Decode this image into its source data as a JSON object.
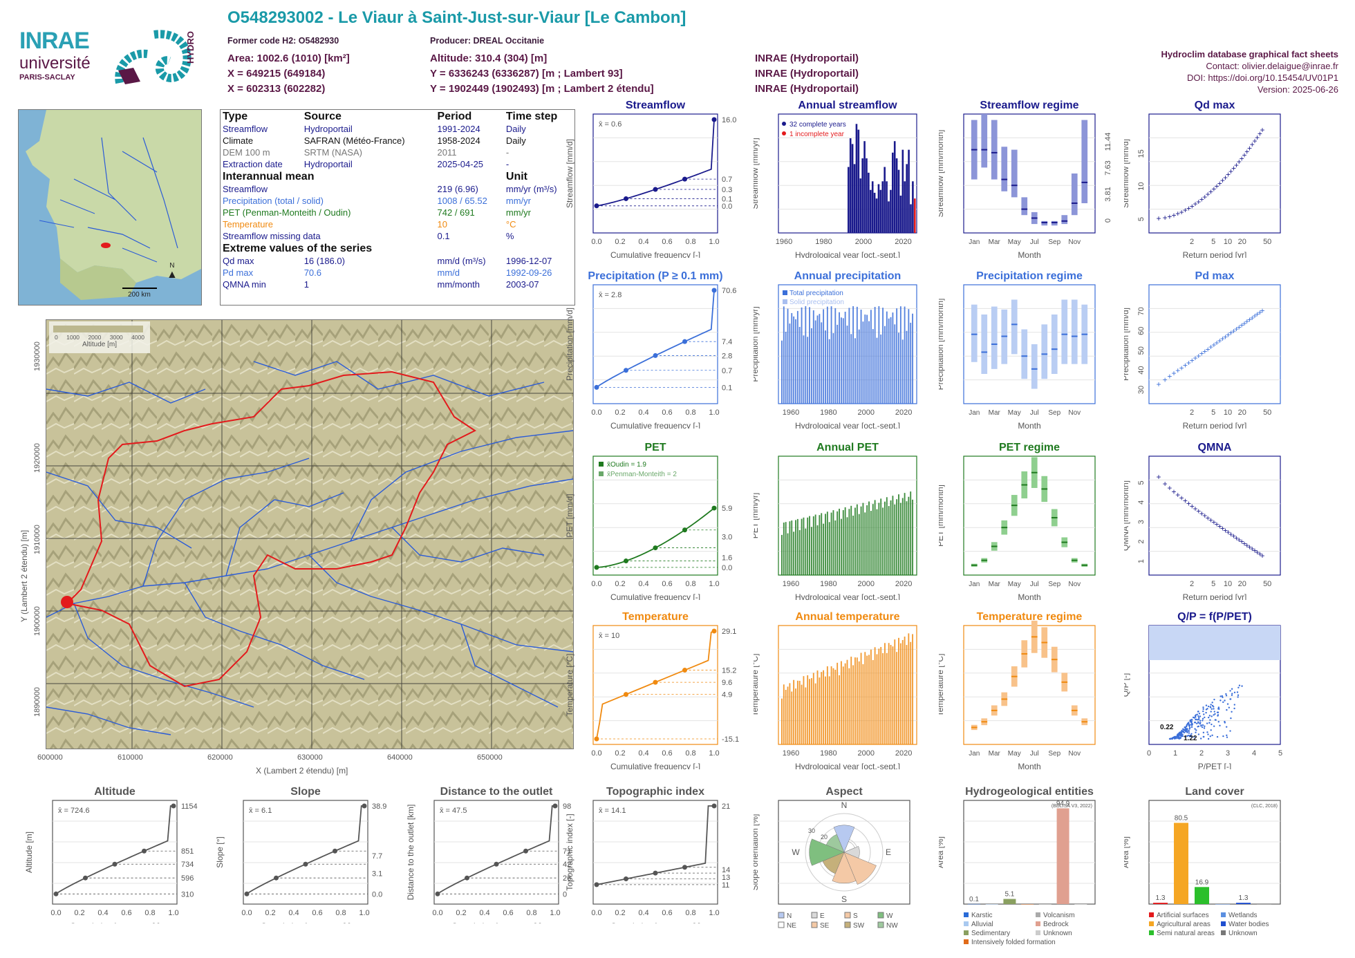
{
  "header": {
    "title": "O548293002 - Le Viaur à Saint-Just-sur-Viaur [Le Cambon]",
    "former_code": "Former code H2: O5482930",
    "producer": "Producer: DREAL Occitanie",
    "area": "Area: 1002.6 (1010) [km²]",
    "altitude": "Altitude: 310.4 (304) [m]",
    "x93": "X = 649215 (649184)",
    "y93": "Y = 6336243 (6336287) [m ; Lambert 93]",
    "x2": "X = 602313 (602282)",
    "y2": "Y = 1902449 (1902493) [m ; Lambert 2 étendu]",
    "src1": "INRAE (Hydroportail)",
    "src2": "INRAE (Hydroportail)",
    "src3": "INRAE (Hydroportail)"
  },
  "right_info": {
    "line1": "Hydroclim database graphical fact sheets",
    "line2": "Contact: olivier.delaigue@inrae.fr",
    "line3": "DOI: https://doi.org/10.15454/UV01P1",
    "line4": "Version: 2025-06-26"
  },
  "logos": {
    "inrae": "INRAE",
    "universite": "université",
    "paris": "PARIS-SACLAY",
    "hydro": "HYDRO"
  },
  "info_table": {
    "head": [
      "Type",
      "Source",
      "Period",
      "Time step"
    ],
    "rows": [
      [
        "Streamflow",
        "Hydroportail",
        "1991-2024",
        "Daily"
      ],
      [
        "Climate",
        "SAFRAN (Météo-France)",
        "1958-2024",
        "Daily"
      ],
      [
        "DEM 100 m",
        "SRTM (NASA)",
        "2011",
        "-"
      ],
      [
        "Extraction date",
        "Hydroportail",
        "2025-04-25",
        "-"
      ]
    ],
    "interannual_title": "Interannual mean",
    "unit_title": "Unit",
    "interannual": [
      [
        "Streamflow",
        "219 (6.96)",
        "mm/yr (m³/s)"
      ],
      [
        "Precipitation (total / solid)",
        "1008 / 65.52",
        "mm/yr"
      ],
      [
        "PET (Penman-Monteith / Oudin)",
        "742 / 691",
        "mm/yr"
      ],
      [
        "Temperature",
        "10",
        "°C"
      ],
      [
        "Streamflow missing data",
        "0.1",
        "%"
      ]
    ],
    "extreme_title": "Extreme values of the series",
    "extreme": [
      [
        "Qd max",
        "16 (186.0)",
        "mm/d (m³/s)",
        "1996-12-07"
      ],
      [
        "Pd max",
        "70.6",
        "mm/d",
        "1992-09-26"
      ],
      [
        "QMNA min",
        "1",
        "mm/month",
        "2003-07"
      ]
    ]
  },
  "map_small": {
    "north": "N",
    "scale": "200 km"
  },
  "map_big": {
    "xlabel": "X (Lambert 2 étendu) [m]",
    "ylabel": "Y (Lambert 2 étendu) [m]",
    "xticks": [
      "600000",
      "610000",
      "620000",
      "630000",
      "640000",
      "650000"
    ],
    "yticks": [
      "1890000",
      "1900000",
      "1910000",
      "1920000",
      "1930000"
    ],
    "legend_ticks": [
      "0",
      "1000",
      "2000",
      "3000",
      "4000"
    ],
    "legend_title": "Altitude [m]"
  },
  "colors": {
    "streamflow": "#1a1a8c",
    "precip": "#3b6fd9",
    "pet": "#1f7a1f",
    "temp": "#f08a10",
    "gray": "#555555",
    "title_teal": "#1a9aa8",
    "header_purple": "#5a1846"
  },
  "chart_data": [
    {
      "id": "streamflow_fdc",
      "type": "line",
      "title": "Streamflow",
      "xlabel": "Cumulative frequency [-]",
      "ylabel": "Streamflow [mm/d]",
      "mean_label": "x̄ = 0.6",
      "right_ticks": [
        "16.0",
        "0.7",
        "0.3",
        "0.1",
        "0.0"
      ],
      "points": [
        [
          0,
          0.0
        ],
        [
          0.25,
          0.1
        ],
        [
          0.5,
          0.3
        ],
        [
          0.75,
          0.7
        ],
        [
          1,
          16.0
        ]
      ],
      "ylim": [
        0,
        16
      ]
    },
    {
      "id": "annual_streamflow",
      "type": "bar",
      "title": "Annual streamflow",
      "xlabel": "Hydrological year [oct.-sept.]",
      "ylabel": "Streamflow [mm/yr]",
      "legend": [
        "32 complete years",
        "1 incomplete year"
      ],
      "x": [
        1991,
        1992,
        1993,
        1994,
        1995,
        1996,
        1997,
        1998,
        1999,
        2000,
        2001,
        2002,
        2003,
        2004,
        2005,
        2006,
        2007,
        2008,
        2009,
        2010,
        2011,
        2012,
        2013,
        2014,
        2015,
        2016,
        2017,
        2018,
        2019,
        2020,
        2021,
        2022,
        2023,
        2024
      ],
      "values": [
        230,
        330,
        310,
        240,
        380,
        360,
        190,
        260,
        320,
        260,
        210,
        150,
        180,
        140,
        120,
        170,
        150,
        180,
        230,
        180,
        110,
        150,
        280,
        320,
        260,
        220,
        130,
        290,
        180,
        240,
        290,
        100,
        180,
        120
      ],
      "xlim": [
        1958,
        2024
      ],
      "ylim": [
        0,
        400
      ]
    },
    {
      "id": "streamflow_regime",
      "type": "box",
      "title": "Streamflow regime",
      "xlabel": "Month",
      "ylabel": "Streamflow [mm/month]",
      "categories": [
        "Jan",
        "Feb",
        "Mar",
        "Apr",
        "May",
        "Jun",
        "Jul",
        "Aug",
        "Sep",
        "Oct",
        "Nov",
        "Dec"
      ],
      "median": [
        28,
        28,
        27,
        18,
        16,
        8,
        5,
        3.5,
        3.5,
        4,
        10,
        17
      ],
      "q1": [
        18,
        22,
        18,
        14,
        12,
        6,
        3,
        2.5,
        2.5,
        3,
        6,
        10
      ],
      "q3": [
        38,
        40,
        38,
        29,
        28,
        12,
        7,
        4,
        4,
        6,
        20,
        38
      ],
      "right_ticks": [
        "11.44",
        "7.63",
        "3.81",
        "0"
      ],
      "ylim": [
        0,
        40
      ]
    },
    {
      "id": "qd_max",
      "type": "scatter",
      "title": "Qd max",
      "xlabel": "Return period [yr]",
      "ylabel": "Streamflow [mm/d]",
      "xticks": [
        "2",
        "5",
        "10",
        "20",
        "50"
      ],
      "yticks": [
        "5",
        "10",
        "15"
      ]
    },
    {
      "id": "precip_fdc",
      "type": "line",
      "title": "Precipitation (P ≥ 0.1 mm)",
      "xlabel": "Cumulative frequency [-]",
      "ylabel": "Precipitation [mm/d]",
      "mean_label": "x̄ = 2.8",
      "right_ticks": [
        "70.6",
        "7.4",
        "2.8",
        "0.7",
        "0.1"
      ],
      "ylim": [
        0,
        70.6
      ]
    },
    {
      "id": "annual_precip",
      "type": "bar",
      "title": "Annual precipitation",
      "xlabel": "Hydrological year [oct.-sept.]",
      "ylabel": "Precipitation [mm/yr]",
      "legend": [
        "Total precipitation",
        "Solid precipitation"
      ],
      "xlim": [
        1958,
        2024
      ],
      "ylim": [
        0,
        1400
      ]
    },
    {
      "id": "precip_regime",
      "type": "box",
      "title": "Precipitation regime",
      "xlabel": "Month",
      "ylabel": "Precipitation [mm/month]",
      "categories": [
        "Jan",
        "Feb",
        "Mar",
        "Apr",
        "May",
        "Jun",
        "Jul",
        "Aug",
        "Sep",
        "Oct",
        "Nov",
        "Dec"
      ],
      "median": [
        90,
        72,
        80,
        88,
        100,
        68,
        55,
        70,
        75,
        90,
        88,
        90
      ],
      "q1": [
        62,
        50,
        55,
        60,
        70,
        45,
        35,
        45,
        50,
        60,
        60,
        60
      ],
      "q3": [
        120,
        110,
        118,
        115,
        125,
        95,
        80,
        100,
        110,
        125,
        125,
        120
      ],
      "ylim": [
        20,
        140
      ]
    },
    {
      "id": "pd_max",
      "type": "scatter",
      "title": "Pd max",
      "xlabel": "Return period [yr]",
      "ylabel": "Precipitation [mm/d]",
      "xticks": [
        "2",
        "5",
        "10",
        "20",
        "50"
      ],
      "yticks": [
        "30",
        "40",
        "50",
        "60",
        "70"
      ]
    },
    {
      "id": "pet_fdc",
      "type": "line",
      "title": "PET",
      "xlabel": "Cumulative frequency [-]",
      "ylabel": "PET [mm/d]",
      "legend": [
        "x̄Oudin = 1.9",
        "x̄Penman-Monteith = 2"
      ],
      "right_ticks": [
        "5.9",
        "3.0",
        "1.6",
        "0.0"
      ],
      "ylim": [
        0,
        10
      ]
    },
    {
      "id": "annual_pet",
      "type": "bar",
      "title": "Annual PET",
      "xlabel": "Hydrological year [oct.-sept.]",
      "ylabel": "PET [mm/yr]",
      "xlim": [
        1958,
        2024
      ],
      "ylim": [
        550,
        950
      ]
    },
    {
      "id": "pet_regime",
      "type": "box",
      "title": "PET regime",
      "xlabel": "Month",
      "ylabel": "PET [mm/month]",
      "categories": [
        "Jan",
        "Feb",
        "Mar",
        "Apr",
        "May",
        "Jun",
        "Jul",
        "Aug",
        "Sep",
        "Oct",
        "Nov",
        "Dec"
      ],
      "median": [
        12,
        18,
        35,
        58,
        85,
        110,
        125,
        105,
        70,
        40,
        18,
        12
      ],
      "ylim": [
        0,
        145
      ]
    },
    {
      "id": "qmna",
      "type": "scatter",
      "title": "QMNA",
      "xlabel": "Return period [yr]",
      "ylabel": "QMNA [mm/month]",
      "xticks": [
        "2",
        "5",
        "10",
        "20",
        "50"
      ],
      "yticks": [
        "1",
        "2",
        "3",
        "4",
        "5"
      ]
    },
    {
      "id": "temp_fdc",
      "type": "line",
      "title": "Temperature",
      "xlabel": "Cumulative frequency [-]",
      "ylabel": "Temperature [°C]",
      "mean_label": "x̄ = 10",
      "right_ticks": [
        "29.1",
        "15.2",
        "9.6",
        "4.9",
        "-15.1"
      ],
      "ylim": [
        -15.1,
        29.1
      ]
    },
    {
      "id": "annual_temp",
      "type": "bar",
      "title": "Annual temperature",
      "xlabel": "Hydrological year [oct.-sept.]",
      "ylabel": "Temperature [°C]",
      "xlim": [
        1958,
        2024
      ],
      "ylim": [
        8,
        12
      ]
    },
    {
      "id": "temp_regime",
      "type": "box",
      "title": "Temperature regime",
      "xlabel": "Month",
      "ylabel": "Temperature [°C]",
      "categories": [
        "Jan",
        "Feb",
        "Mar",
        "Apr",
        "May",
        "Jun",
        "Jul",
        "Aug",
        "Sep",
        "Oct",
        "Nov",
        "Dec"
      ],
      "median": [
        3,
        4,
        6,
        8,
        12,
        16,
        19,
        18,
        15,
        11,
        6,
        4
      ],
      "ylim": [
        0,
        21
      ]
    },
    {
      "id": "qp",
      "type": "scatter",
      "title": "Q/P = f(P/PET)",
      "xlabel": "P/PET [-]",
      "ylabel": "Q/P [-]",
      "annotations": [
        "0.22",
        "1.22"
      ],
      "xlim": [
        0,
        5
      ],
      "ylim": [
        0,
        1.4
      ]
    },
    {
      "id": "altitude",
      "type": "line",
      "title": "Altitude",
      "xlabel": "Cumulative frequency [-]",
      "ylabel": "Altitude [m]",
      "mean_label": "x̄ = 724.6",
      "right_ticks": [
        "1154",
        "851",
        "734",
        "596",
        "310"
      ]
    },
    {
      "id": "slope",
      "type": "line",
      "title": "Slope",
      "xlabel": "Cumulative frequency [-]",
      "ylabel": "Slope [°]",
      "mean_label": "x̄ = 6.1",
      "right_ticks": [
        "38.9",
        "7.7",
        "3.1",
        "0.0"
      ]
    },
    {
      "id": "distance",
      "type": "line",
      "title": "Distance to the outlet",
      "xlabel": "Cumulative frequency [-]",
      "ylabel": "Distance to the outlet [km]",
      "mean_label": "x̄ = 47.5",
      "right_ticks": [
        "98",
        "71",
        "42",
        "26",
        "0"
      ]
    },
    {
      "id": "topo",
      "type": "line",
      "title": "Topographic index",
      "xlabel": "Cumulative frequency [-]",
      "ylabel": "Topographic index [-]",
      "mean_label": "x̄ = 14.1",
      "right_ticks": [
        "21",
        "14",
        "13",
        "11"
      ]
    },
    {
      "id": "aspect",
      "type": "pie",
      "title": "Aspect",
      "ylabel": "Slope orientation [%]",
      "directions": [
        "N",
        "NE",
        "E",
        "SE",
        "S",
        "SW",
        "W",
        "NW"
      ],
      "legend": [
        "N",
        "E",
        "S",
        "W",
        "NE",
        "SE",
        "SW",
        "NW"
      ],
      "ring_labels": [
        "10",
        "20",
        "30"
      ]
    },
    {
      "id": "hydrogeo",
      "type": "bar",
      "title": "Hydrogeological entities",
      "ylabel": "Area [%]",
      "note": "(BDLISA V3, 2022)",
      "categories": [
        "Karstic",
        "Alluvial",
        "Sedimentary",
        "Intensively folded formation",
        "Volcanism",
        "Bedrock",
        "Unknown"
      ],
      "values": [
        0.1,
        0,
        5.1,
        0,
        0,
        94.9,
        0
      ],
      "ylim": [
        0,
        100
      ]
    },
    {
      "id": "landcover",
      "type": "bar",
      "title": "Land cover",
      "ylabel": "Area [%]",
      "note": "(CLC, 2018)",
      "categories": [
        "Artificial surfaces",
        "Agricultural areas",
        "Semi natural areas",
        "Wetlands",
        "Water bodies",
        "Unknown"
      ],
      "values": [
        1.3,
        80.5,
        16.9,
        0,
        1.3,
        0
      ],
      "ylim": [
        0,
        100
      ]
    }
  ]
}
